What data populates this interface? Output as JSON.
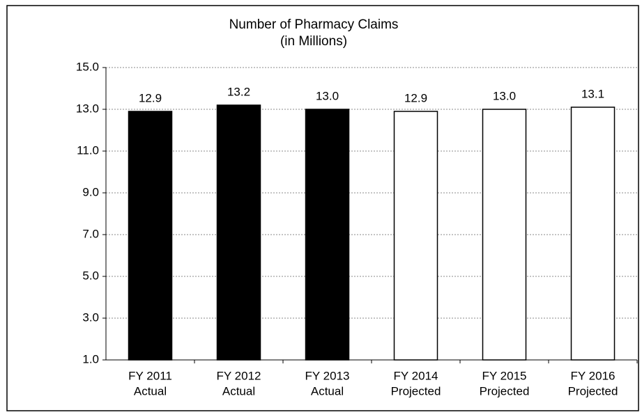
{
  "chart_data": {
    "type": "bar",
    "title": "Number of Pharmacy Claims",
    "subtitle": "(in Millions)",
    "categories": [
      [
        "FY 2011",
        "Actual"
      ],
      [
        "FY 2012",
        "Actual"
      ],
      [
        "FY 2013",
        "Actual"
      ],
      [
        "FY 2014",
        "Projected"
      ],
      [
        "FY 2015",
        "Projected"
      ],
      [
        "FY 2016",
        "Projected"
      ]
    ],
    "values": [
      12.9,
      13.2,
      13.0,
      12.9,
      13.0,
      13.1
    ],
    "value_labels": [
      "12.9",
      "13.2",
      "13.0",
      "12.9",
      "13.0",
      "13.1"
    ],
    "colors": [
      "#000000",
      "#000000",
      "#000000",
      "#ffffff",
      "#ffffff",
      "#ffffff"
    ],
    "ylim": [
      1,
      15
    ],
    "yticks": [
      {
        "value": 1,
        "label": "1.0"
      },
      {
        "value": 3,
        "label": "3.0"
      },
      {
        "value": 5,
        "label": "5.0"
      },
      {
        "value": 7,
        "label": "7.0"
      },
      {
        "value": 9,
        "label": "9.0"
      },
      {
        "value": 11,
        "label": "11.0"
      },
      {
        "value": 13,
        "label": "13.0"
      },
      {
        "value": 15,
        "label": "15.0"
      }
    ],
    "grid": true
  }
}
